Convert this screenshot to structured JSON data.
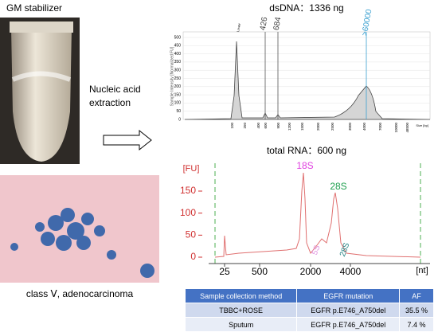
{
  "left": {
    "tube_label": "GM stabilizer",
    "cytology_label": "class Ⅴ, adenocarcinoma"
  },
  "arrow_label": "Nucleic acid extraction",
  "dsdna": {
    "title": "dsDNA：1336 ng",
    "y_axis_label": "Sample Intensity [Normalized FU]",
    "yticks": [
      0,
      50,
      100,
      150,
      200,
      250,
      300,
      350,
      400,
      450,
      500
    ],
    "peak_labels": [
      "Lower",
      "426",
      "684",
      ">60000"
    ],
    "xticks": [
      "100",
      "250",
      "400",
      "600",
      "900",
      "1200",
      "1500",
      "2000",
      "2500",
      "3000",
      "4000",
      "7000",
      "10000",
      "48500"
    ],
    "x_axis_label": "Size [bp]"
  },
  "rna": {
    "title": "total RNA：600 ng",
    "y_unit": "[FU]",
    "yticks": [
      0,
      50,
      100,
      150
    ],
    "peak_labels": [
      "18S",
      "28S",
      "5S",
      "28S"
    ],
    "xticks": [
      "25",
      "500",
      "2000",
      "4000"
    ],
    "x_unit": "[nt]"
  },
  "table": {
    "header": [
      "Sample collection method",
      "EGFR mutation",
      "AF"
    ],
    "rows": [
      [
        "TBBC+ROSE",
        "EGFR p.E746_A750del",
        "35.5 %"
      ],
      [
        "Sputum",
        "EGFR p.E746_A750del",
        "7.4 %"
      ]
    ]
  }
}
